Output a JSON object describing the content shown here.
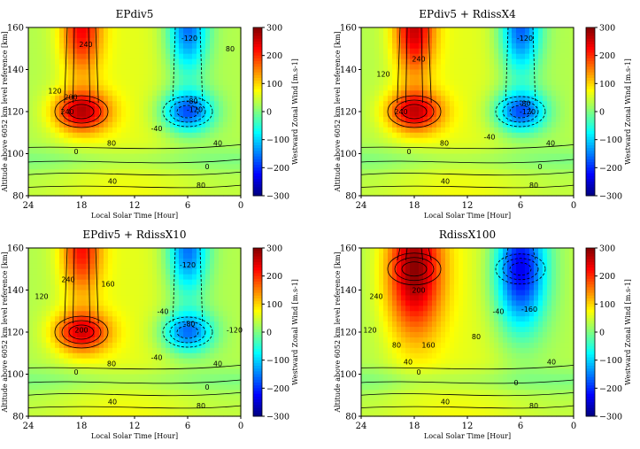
{
  "figure": {
    "xlabel": "Local Solar Time [Hour]",
    "ylabel": "Altitude above 6052 km level reference [km]",
    "colorbar_label": "Westward Zonal Wind [m.s-1]"
  },
  "chart_data": [
    {
      "type": "heatmap",
      "title": "EPdiv5",
      "xlabel": "Local Solar Time [Hour]",
      "ylabel": "Altitude above 6052 km level reference [km]",
      "x_ticks": [
        24,
        18,
        12,
        6,
        0
      ],
      "y_ticks": [
        80,
        100,
        120,
        140,
        160
      ],
      "xlim": [
        24,
        0
      ],
      "ylim": [
        80,
        160
      ],
      "colorbar": {
        "label": "Westward Zonal Wind [m.s-1]",
        "range": [
          -300,
          300
        ],
        "ticks": [
          300,
          200,
          100,
          0,
          -100,
          -200,
          -300
        ],
        "colormap": "jet"
      },
      "features": {
        "west_peak": {
          "lst": 18,
          "alt": 120,
          "value": 260
        },
        "west_top": {
          "lst": 18,
          "alt": 160,
          "value": 240
        },
        "east_min": {
          "lst": 6,
          "alt": 120,
          "value": -170
        },
        "east_top": {
          "lst": 6,
          "alt": 160,
          "value": -140
        }
      },
      "contour_labels": [
        {
          "text": "240",
          "lst": 17.5,
          "alt": 152
        },
        {
          "text": "120",
          "lst": 21,
          "alt": 130
        },
        {
          "text": "200",
          "lst": 19.2,
          "alt": 127
        },
        {
          "text": "240",
          "lst": 19.6,
          "alt": 120
        },
        {
          "text": "80",
          "lst": 14.6,
          "alt": 105
        },
        {
          "text": "0",
          "lst": 18.6,
          "alt": 101
        },
        {
          "text": "40",
          "lst": 14.5,
          "alt": 87
        },
        {
          "text": "-120",
          "lst": 5.8,
          "alt": 155
        },
        {
          "text": "80",
          "lst": 1.2,
          "alt": 150
        },
        {
          "text": "-80",
          "lst": 5.5,
          "alt": 125
        },
        {
          "text": "-120",
          "lst": 5.2,
          "alt": 121
        },
        {
          "text": "-40",
          "lst": 9.5,
          "alt": 112
        },
        {
          "text": "40",
          "lst": 2.6,
          "alt": 105
        },
        {
          "text": "0",
          "lst": 3.8,
          "alt": 94
        },
        {
          "text": "80",
          "lst": 4.5,
          "alt": 85
        }
      ]
    },
    {
      "type": "heatmap",
      "title": "EPdiv5 + RdissX4",
      "xlabel": "Local Solar Time [Hour]",
      "ylabel": "Altitude above 6052 km level reference [km]",
      "x_ticks": [
        24,
        18,
        12,
        6,
        0
      ],
      "y_ticks": [
        80,
        100,
        120,
        140,
        160
      ],
      "xlim": [
        24,
        0
      ],
      "ylim": [
        80,
        160
      ],
      "colorbar": {
        "label": "Westward Zonal Wind [m.s-1]",
        "range": [
          -300,
          300
        ],
        "ticks": [
          300,
          200,
          100,
          0,
          -100,
          -200,
          -300
        ],
        "colormap": "jet"
      },
      "features": {
        "west_peak": {
          "lst": 18,
          "alt": 120,
          "value": 250
        },
        "west_top": {
          "lst": 18,
          "alt": 160,
          "value": 270
        },
        "east_min": {
          "lst": 6,
          "alt": 120,
          "value": -170
        },
        "east_top": {
          "lst": 6,
          "alt": 160,
          "value": -150
        }
      },
      "contour_labels": [
        {
          "text": "240",
          "lst": 17.5,
          "alt": 145
        },
        {
          "text": "120",
          "lst": 21.5,
          "alt": 138
        },
        {
          "text": "240",
          "lst": 19.5,
          "alt": 120
        },
        {
          "text": "80",
          "lst": 14.6,
          "alt": 105
        },
        {
          "text": "0",
          "lst": 18.6,
          "alt": 101
        },
        {
          "text": "40",
          "lst": 14.5,
          "alt": 87
        },
        {
          "text": "-120",
          "lst": 5.5,
          "alt": 155
        },
        {
          "text": "-80",
          "lst": 5.5,
          "alt": 124
        },
        {
          "text": "-120",
          "lst": 5.2,
          "alt": 120
        },
        {
          "text": "-40",
          "lst": 9.5,
          "alt": 108
        },
        {
          "text": "40",
          "lst": 2.6,
          "alt": 105
        },
        {
          "text": "0",
          "lst": 3.8,
          "alt": 94
        },
        {
          "text": "80",
          "lst": 4.5,
          "alt": 85
        }
      ]
    },
    {
      "type": "heatmap",
      "title": "EPdiv5 + RdissX10",
      "xlabel": "Local Solar Time [Hour]",
      "ylabel": "Altitude above 6052 km level reference [km]",
      "x_ticks": [
        24,
        18,
        12,
        6,
        0
      ],
      "y_ticks": [
        80,
        100,
        120,
        140,
        160
      ],
      "xlim": [
        24,
        0
      ],
      "ylim": [
        80,
        160
      ],
      "colorbar": {
        "label": "Westward Zonal Wind [m.s-1]",
        "range": [
          -300,
          300
        ],
        "ticks": [
          300,
          200,
          100,
          0,
          -100,
          -200,
          -300
        ],
        "colormap": "jet"
      },
      "features": {
        "west_peak": {
          "lst": 18,
          "alt": 120,
          "value": 240
        },
        "west_top": {
          "lst": 18,
          "alt": 160,
          "value": 230
        },
        "east_min": {
          "lst": 6,
          "alt": 120,
          "value": -150
        },
        "east_top": {
          "lst": 6,
          "alt": 160,
          "value": -140
        }
      },
      "contour_labels": [
        {
          "text": "240",
          "lst": 19.5,
          "alt": 145
        },
        {
          "text": "160",
          "lst": 15,
          "alt": 143
        },
        {
          "text": "120",
          "lst": 22.5,
          "alt": 137
        },
        {
          "text": "200",
          "lst": 18,
          "alt": 121
        },
        {
          "text": "80",
          "lst": 14.6,
          "alt": 105
        },
        {
          "text": "0",
          "lst": 18.6,
          "alt": 101
        },
        {
          "text": "40",
          "lst": 14.5,
          "alt": 87
        },
        {
          "text": "-120",
          "lst": 6,
          "alt": 152
        },
        {
          "text": "-40",
          "lst": 8.8,
          "alt": 130
        },
        {
          "text": "-80",
          "lst": 5.8,
          "alt": 124
        },
        {
          "text": "-120",
          "lst": 0.7,
          "alt": 121
        },
        {
          "text": "-40",
          "lst": 9.5,
          "alt": 108
        },
        {
          "text": "40",
          "lst": 2.6,
          "alt": 105
        },
        {
          "text": "0",
          "lst": 3.8,
          "alt": 94
        },
        {
          "text": "80",
          "lst": 4.5,
          "alt": 85
        }
      ]
    },
    {
      "type": "heatmap",
      "title": "RdissX100",
      "xlabel": "Local Solar Time [Hour]",
      "ylabel": "Altitude above 6052 km level reference [km]",
      "x_ticks": [
        24,
        18,
        12,
        6,
        0
      ],
      "y_ticks": [
        80,
        100,
        120,
        140,
        160
      ],
      "xlim": [
        24,
        0
      ],
      "ylim": [
        80,
        160
      ],
      "colorbar": {
        "label": "Westward Zonal Wind [m.s-1]",
        "range": [
          -300,
          300
        ],
        "ticks": [
          300,
          200,
          100,
          0,
          -100,
          -200,
          -300
        ],
        "colormap": "jet"
      },
      "features": {
        "west_peak": {
          "lst": 18,
          "alt": 150,
          "value": 290
        },
        "east_min": {
          "lst": 6,
          "alt": 150,
          "value": -230
        }
      },
      "contour_labels": [
        {
          "text": "240",
          "lst": 22.3,
          "alt": 137
        },
        {
          "text": "200",
          "lst": 17.5,
          "alt": 140
        },
        {
          "text": "120",
          "lst": 23,
          "alt": 121
        },
        {
          "text": "80",
          "lst": 20,
          "alt": 114
        },
        {
          "text": "160",
          "lst": 16.4,
          "alt": 114
        },
        {
          "text": "80",
          "lst": 11,
          "alt": 118
        },
        {
          "text": "-40",
          "lst": 8.5,
          "alt": 130
        },
        {
          "text": "-160",
          "lst": 5,
          "alt": 131
        },
        {
          "text": "40",
          "lst": 18.7,
          "alt": 106
        },
        {
          "text": "0",
          "lst": 17.5,
          "alt": 101
        },
        {
          "text": "40",
          "lst": 2.5,
          "alt": 106
        },
        {
          "text": "0",
          "lst": 6.5,
          "alt": 96
        },
        {
          "text": "40",
          "lst": 14.5,
          "alt": 87
        },
        {
          "text": "80",
          "lst": 4.5,
          "alt": 85
        }
      ]
    }
  ]
}
